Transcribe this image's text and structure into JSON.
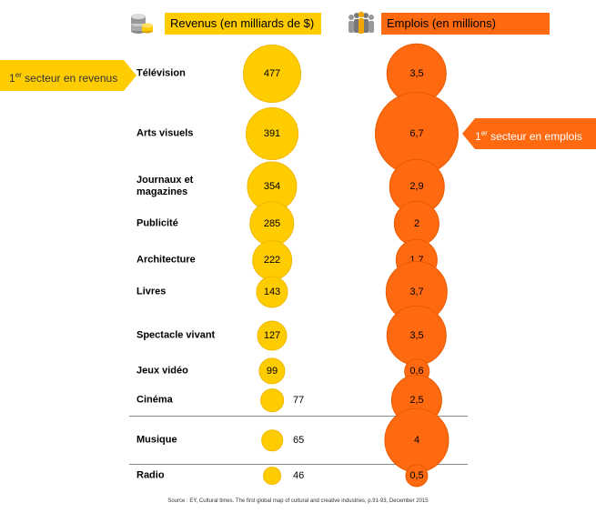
{
  "headers": {
    "revenue": "Revenus  (en milliards de $)",
    "jobs": "Emplois (en millions)"
  },
  "icons": {
    "revenue": "coin-stack-icon",
    "jobs": "people-group-icon"
  },
  "callouts": {
    "revenue": {
      "prefix": "1",
      "sup": "er",
      "text": " secteur en revenus"
    },
    "jobs": {
      "prefix": "1",
      "sup": "er",
      "text": " secteur en emplois"
    }
  },
  "colors": {
    "revenue": "#ffcc00",
    "jobs": "#ff6a10"
  },
  "chart_data": {
    "type": "bubble",
    "title": "",
    "categories": [
      "Télévision",
      "Arts visuels",
      "Journaux et magazines",
      "Publicité",
      "Architecture",
      "Livres",
      "Spectacle vivant",
      "Jeux vidéo",
      "Cinéma",
      "Musique",
      "Radio"
    ],
    "series": [
      {
        "name": "Revenus  (en milliards de $)",
        "values": [
          477,
          391,
          354,
          285,
          222,
          143,
          127,
          99,
          77,
          65,
          46
        ],
        "labels": [
          "477",
          "391",
          "354",
          "285",
          "222",
          "143",
          "127",
          "99",
          "77",
          "65",
          "46"
        ]
      },
      {
        "name": "Emplois (en millions)",
        "values": [
          3.5,
          6.7,
          2.9,
          2,
          1.7,
          3.7,
          3.5,
          0.6,
          2.5,
          4,
          0.5
        ],
        "labels": [
          "3,5",
          "6,7",
          "2,9",
          "2",
          "1,7",
          "3,7",
          "3,5",
          "0,6",
          "2,5",
          "4",
          "0,5"
        ]
      }
    ]
  },
  "source": "Source : EY, Cultural times. The first global map of cultural and creative industries, p.91-93, December 2015"
}
